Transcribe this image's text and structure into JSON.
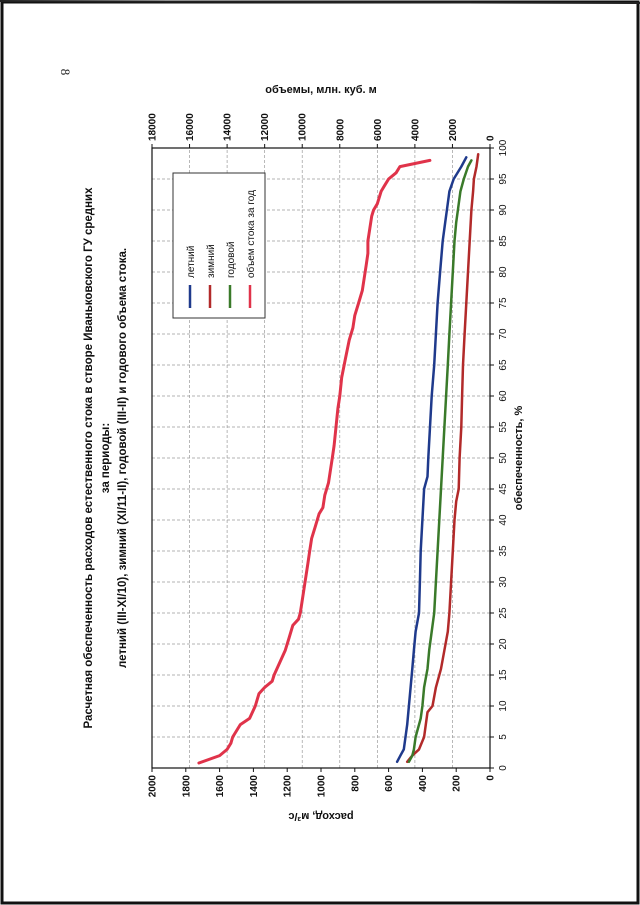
{
  "page": {
    "number": "8"
  },
  "chart_data": {
    "type": "line",
    "title_lines": [
      "Расчетная обеспеченность расходов естественного стока в створе Иваньковского ГУ средних",
      "за периоды:",
      "летний (III-XI/10), зимний (XI/11-II), годовой (III-II) и годового объема стока."
    ],
    "xlabel": "обеспеченность, %",
    "ylabel": "расход, м³/с",
    "y2label": "объемы, млн. куб. м",
    "xlim": [
      0,
      100
    ],
    "ylim": [
      0,
      2000
    ],
    "y2lim": [
      0,
      18000
    ],
    "xticks": [
      0,
      5,
      10,
      15,
      20,
      25,
      30,
      35,
      40,
      45,
      50,
      55,
      60,
      65,
      70,
      75,
      80,
      85,
      90,
      95,
      100
    ],
    "yticks": [
      0,
      200,
      400,
      600,
      800,
      1000,
      1200,
      1400,
      1600,
      1800,
      2000
    ],
    "y2ticks": [
      0,
      2000,
      4000,
      6000,
      8000,
      10000,
      12000,
      14000,
      16000,
      18000
    ],
    "grid": true,
    "legend_position": "top-right",
    "colors": {
      "summer": "#1f3a8c",
      "winter": "#b22a2a",
      "annual": "#3a7a2a",
      "volume": "#e0334a"
    },
    "series": [
      {
        "name": "летний",
        "key": "summer",
        "axis": "left",
        "x": [
          1,
          2,
          3,
          5,
          7,
          10,
          13,
          16,
          19,
          22,
          25,
          30,
          35,
          40,
          45,
          47,
          50,
          55,
          60,
          65,
          70,
          75,
          80,
          85,
          88,
          90,
          93,
          95,
          97,
          98.5
        ],
        "y": [
          550,
          530,
          510,
          500,
          490,
          480,
          470,
          460,
          450,
          440,
          420,
          415,
          410,
          400,
          390,
          370,
          365,
          355,
          345,
          330,
          320,
          310,
          295,
          280,
          265,
          255,
          240,
          215,
          170,
          140
        ]
      },
      {
        "name": "зимний",
        "key": "winter",
        "axis": "left",
        "x": [
          1,
          2,
          3,
          5,
          7,
          9,
          10,
          13,
          16,
          19,
          22,
          25,
          30,
          35,
          40,
          43,
          45,
          50,
          55,
          60,
          65,
          70,
          75,
          80,
          85,
          90,
          93,
          95,
          97,
          99
        ],
        "y": [
          490,
          460,
          420,
          390,
          380,
          370,
          340,
          320,
          290,
          270,
          250,
          240,
          230,
          220,
          210,
          200,
          185,
          180,
          170,
          165,
          160,
          150,
          140,
          130,
          120,
          110,
          100,
          95,
          80,
          70
        ]
      },
      {
        "name": "годовой",
        "key": "annual",
        "axis": "left",
        "x": [
          1,
          2,
          3,
          5,
          8,
          10,
          13,
          16,
          19,
          22,
          25,
          30,
          35,
          40,
          45,
          50,
          55,
          60,
          65,
          70,
          75,
          80,
          85,
          88,
          90,
          93,
          95,
          97,
          98
        ],
        "y": [
          480,
          460,
          450,
          440,
          410,
          400,
          390,
          370,
          360,
          345,
          330,
          320,
          310,
          300,
          290,
          280,
          270,
          260,
          250,
          240,
          230,
          220,
          210,
          200,
          190,
          175,
          155,
          130,
          110
        ]
      },
      {
        "name": "объем стока за год",
        "key": "volume",
        "axis": "right",
        "x": [
          0.8,
          2,
          3,
          4,
          5,
          7,
          8,
          10,
          12,
          13,
          14,
          15,
          17,
          19,
          21,
          23,
          24,
          25,
          27,
          29,
          31,
          33,
          35,
          37,
          39,
          41,
          42,
          44,
          46,
          48,
          50,
          52,
          55,
          58,
          60,
          63,
          66,
          69,
          71,
          73,
          75,
          77,
          79,
          81,
          83,
          85,
          87,
          89,
          90,
          91,
          93,
          94,
          95,
          96,
          97,
          97.5,
          98
        ],
        "y": [
          15500,
          14400,
          14000,
          13800,
          13700,
          13300,
          12800,
          12500,
          12300,
          12000,
          11600,
          11500,
          11200,
          10900,
          10700,
          10500,
          10200,
          10100,
          10000,
          9900,
          9800,
          9700,
          9600,
          9500,
          9300,
          9100,
          8900,
          8800,
          8600,
          8500,
          8400,
          8300,
          8200,
          8100,
          8000,
          7900,
          7700,
          7500,
          7300,
          7200,
          7000,
          6800,
          6700,
          6600,
          6500,
          6500,
          6400,
          6300,
          6200,
          6000,
          5800,
          5600,
          5400,
          5000,
          4800,
          4000,
          3200
        ]
      }
    ]
  }
}
